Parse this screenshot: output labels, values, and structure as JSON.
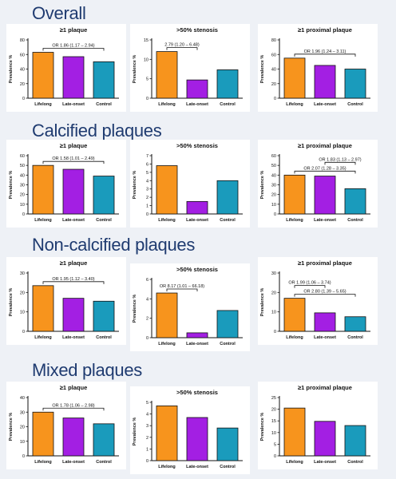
{
  "colors": {
    "lifelong": "#f7941d",
    "late_onset": "#a31fe3",
    "control": "#1a9bbc",
    "section_title": "#1f3b70"
  },
  "sections": [
    {
      "title": "Overall"
    },
    {
      "title": "Calcified plaques"
    },
    {
      "title": "Non-calcified plaques"
    },
    {
      "title": "Mixed plaques"
    }
  ],
  "chart_data": [
    {
      "type": "bar",
      "section": 0,
      "title": "≥1 plaque",
      "categories": [
        "Lifelong",
        "Late-onset",
        "Control"
      ],
      "values": [
        63,
        57,
        50
      ],
      "ylabel": "Prevalence %",
      "ylim": [
        0,
        80
      ],
      "yticks": [
        "0",
        "20",
        "40",
        "60",
        "80"
      ],
      "annotations": [
        {
          "text": "OR 1.86 (1.17 – 2.94)",
          "from": 0,
          "to": 2
        }
      ]
    },
    {
      "type": "bar",
      "section": 0,
      "title": ">50% stenosis",
      "categories": [
        "Lifelong",
        "Late-onset",
        "Control"
      ],
      "values": [
        12,
        4.7,
        7.3
      ],
      "ylabel": "Prevalence %",
      "ylim": [
        0,
        15
      ],
      "yticks": [
        "0",
        "5",
        "10",
        "15"
      ],
      "annotations": [
        {
          "text": "2.79 (1.20 – 6.48)",
          "from": 0,
          "to": 1
        }
      ]
    },
    {
      "type": "bar",
      "section": 0,
      "title": "≥1 proximal plaque",
      "categories": [
        "Lifelong",
        "Late-onset",
        "Control"
      ],
      "values": [
        55,
        45,
        40
      ],
      "ylabel": "Prevalence %",
      "ylim": [
        0,
        80
      ],
      "yticks": [
        "0",
        "20",
        "40",
        "60",
        "80"
      ],
      "annotations": [
        {
          "text": "OR 1.96 (1.24 – 3.11)",
          "from": 0,
          "to": 2
        }
      ]
    },
    {
      "type": "bar",
      "section": 1,
      "title": "≥1 plaque",
      "categories": [
        "Lifelong",
        "Late-onset",
        "Control"
      ],
      "values": [
        50,
        46,
        39
      ],
      "ylabel": "Prevalence %",
      "ylim": [
        0,
        60
      ],
      "yticks": [
        "0",
        "10",
        "20",
        "30",
        "40",
        "50",
        "60"
      ],
      "annotations": [
        {
          "text": "OR 1.58 (1.01 – 2.49)",
          "from": 0,
          "to": 2
        }
      ]
    },
    {
      "type": "bar",
      "section": 1,
      "title": ">50% stenosis",
      "categories": [
        "Lifelong",
        "Late-onset",
        "Control"
      ],
      "values": [
        5.8,
        1.5,
        4
      ],
      "ylabel": "Prevalence %",
      "ylim": [
        0,
        7
      ],
      "yticks": [
        "0",
        "1",
        "2",
        "3",
        "4",
        "5",
        "6",
        "7"
      ],
      "annotations": []
    },
    {
      "type": "bar",
      "section": 1,
      "title": "≥1 proximal plaque",
      "categories": [
        "Lifelong",
        "Late-onset",
        "Control"
      ],
      "values": [
        40,
        39,
        26
      ],
      "ylabel": "Prevalence %",
      "ylim": [
        0,
        60
      ],
      "yticks": [
        "0",
        "10",
        "20",
        "30",
        "40",
        "50",
        "60"
      ],
      "annotations": [
        {
          "text": "OR 2.07 (1.28 – 3.35)",
          "from": 0,
          "to": 2
        },
        {
          "text": "OR 1.83 (1.13 – 2.97)",
          "from": 1,
          "to": 2
        }
      ]
    },
    {
      "type": "bar",
      "section": 2,
      "title": "≥1 plaque",
      "categories": [
        "Lifelong",
        "Late-onset",
        "Control"
      ],
      "values": [
        23.5,
        17,
        15.5
      ],
      "ylabel": "Prevalence %",
      "ylim": [
        0,
        30
      ],
      "yticks": [
        "0",
        "10",
        "20",
        "30"
      ],
      "annotations": [
        {
          "text": "OR 1.95 (1.12 – 3.40)",
          "from": 0,
          "to": 2
        }
      ]
    },
    {
      "type": "bar",
      "section": 2,
      "title": ">50% stenosis",
      "categories": [
        "Lifelong",
        "Late-onset",
        "Control"
      ],
      "values": [
        4.6,
        0.5,
        2.8
      ],
      "ylabel": "Prevalence %",
      "ylim": [
        0,
        6
      ],
      "yticks": [
        "0",
        "2",
        "4",
        "6"
      ],
      "annotations": [
        {
          "text": "OR 8.17 (1.01 – 66.18)",
          "from": 0,
          "to": 1
        }
      ]
    },
    {
      "type": "bar",
      "section": 2,
      "title": "≥1 proximal plaque",
      "categories": [
        "Lifelong",
        "Late-onset",
        "Control"
      ],
      "values": [
        17,
        9.5,
        7.5
      ],
      "ylabel": "Prevalence %",
      "ylim": [
        0,
        30
      ],
      "yticks": [
        "0",
        "10",
        "20",
        "30"
      ],
      "annotations": [
        {
          "text": "OR 2.80 (1.39 – 5.65)",
          "from": 0,
          "to": 2
        },
        {
          "text": "OR 1.99 (1.06 – 3.74)",
          "from": 0,
          "to": 1
        }
      ]
    },
    {
      "type": "bar",
      "section": 3,
      "title": "≥1 plaque",
      "categories": [
        "Lifelong",
        "Late-onset",
        "Control"
      ],
      "values": [
        30,
        26,
        22
      ],
      "ylabel": "Prevalence %",
      "ylim": [
        0,
        40
      ],
      "yticks": [
        "0",
        "10",
        "20",
        "30",
        "40"
      ],
      "annotations": [
        {
          "text": "OR 1.78 (1.06 – 2.98)",
          "from": 0,
          "to": 2
        }
      ]
    },
    {
      "type": "bar",
      "section": 3,
      "title": ">50% stenosis",
      "categories": [
        "Lifelong",
        "Late-onset",
        "Control"
      ],
      "values": [
        4.7,
        3.7,
        2.8
      ],
      "ylabel": "Prevalence %",
      "ylim": [
        0,
        5
      ],
      "yticks": [
        "0",
        "1",
        "2",
        "3",
        "4",
        "5"
      ],
      "annotations": []
    },
    {
      "type": "bar",
      "section": 3,
      "title": "≥1 proximal plaque",
      "categories": [
        "Lifelong",
        "Late-onset",
        "Control"
      ],
      "values": [
        20.5,
        14.8,
        13
      ],
      "ylabel": "Prevalence %",
      "ylim": [
        0,
        25
      ],
      "yticks": [
        "0",
        "5",
        "10",
        "15",
        "20",
        "25"
      ],
      "annotations": []
    }
  ]
}
